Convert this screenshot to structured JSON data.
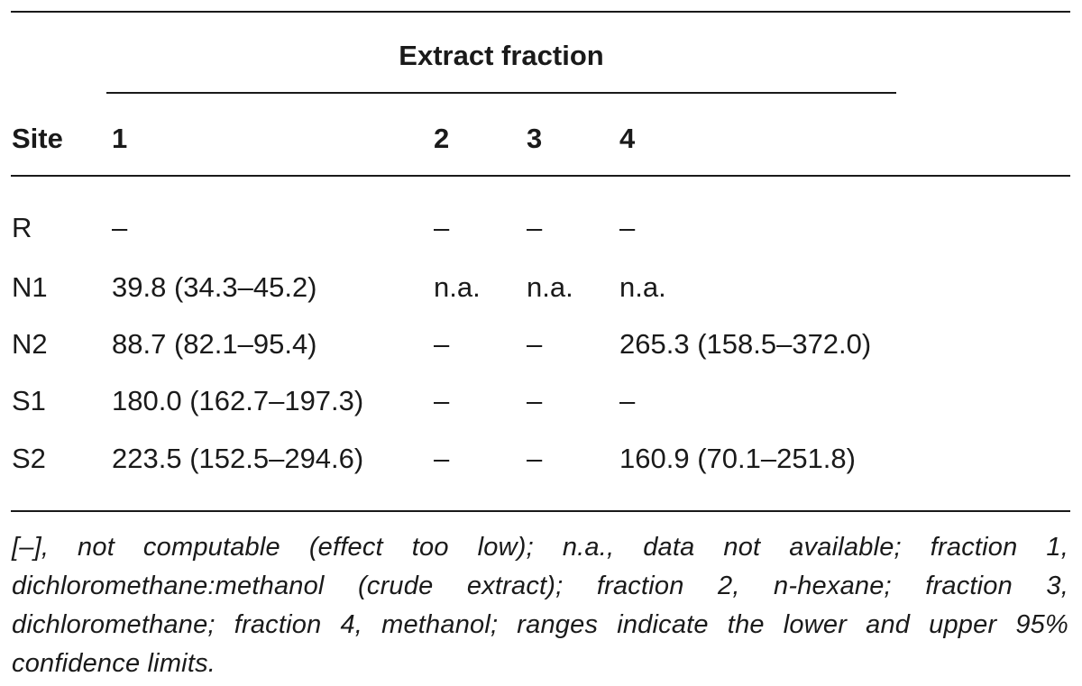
{
  "table": {
    "group_header": "Extract fraction",
    "columns": [
      "Site",
      "1",
      "2",
      "3",
      "4"
    ],
    "rows": [
      [
        "R",
        "–",
        "–",
        "–",
        "–"
      ],
      [
        "N1",
        "39.8 (34.3–45.2)",
        "n.a.",
        "n.a.",
        "n.a."
      ],
      [
        "N2",
        "88.7 (82.1–95.4)",
        "–",
        "–",
        "265.3 (158.5–372.0)"
      ],
      [
        "S1",
        "180.0 (162.7–197.3)",
        "–",
        "–",
        "–"
      ],
      [
        "S2",
        "223.5 (152.5–294.6)",
        "–",
        "–",
        "160.9 (70.1–251.8)"
      ]
    ],
    "footnote": "[–], not computable (effect too low); n.a., data not available; fraction 1, dichloromethane:methanol (crude extract); fraction 2, n-hexane; fraction 3, dichloromethane; fraction 4, methanol; ranges indicate the lower and upper 95% confidence limits."
  }
}
